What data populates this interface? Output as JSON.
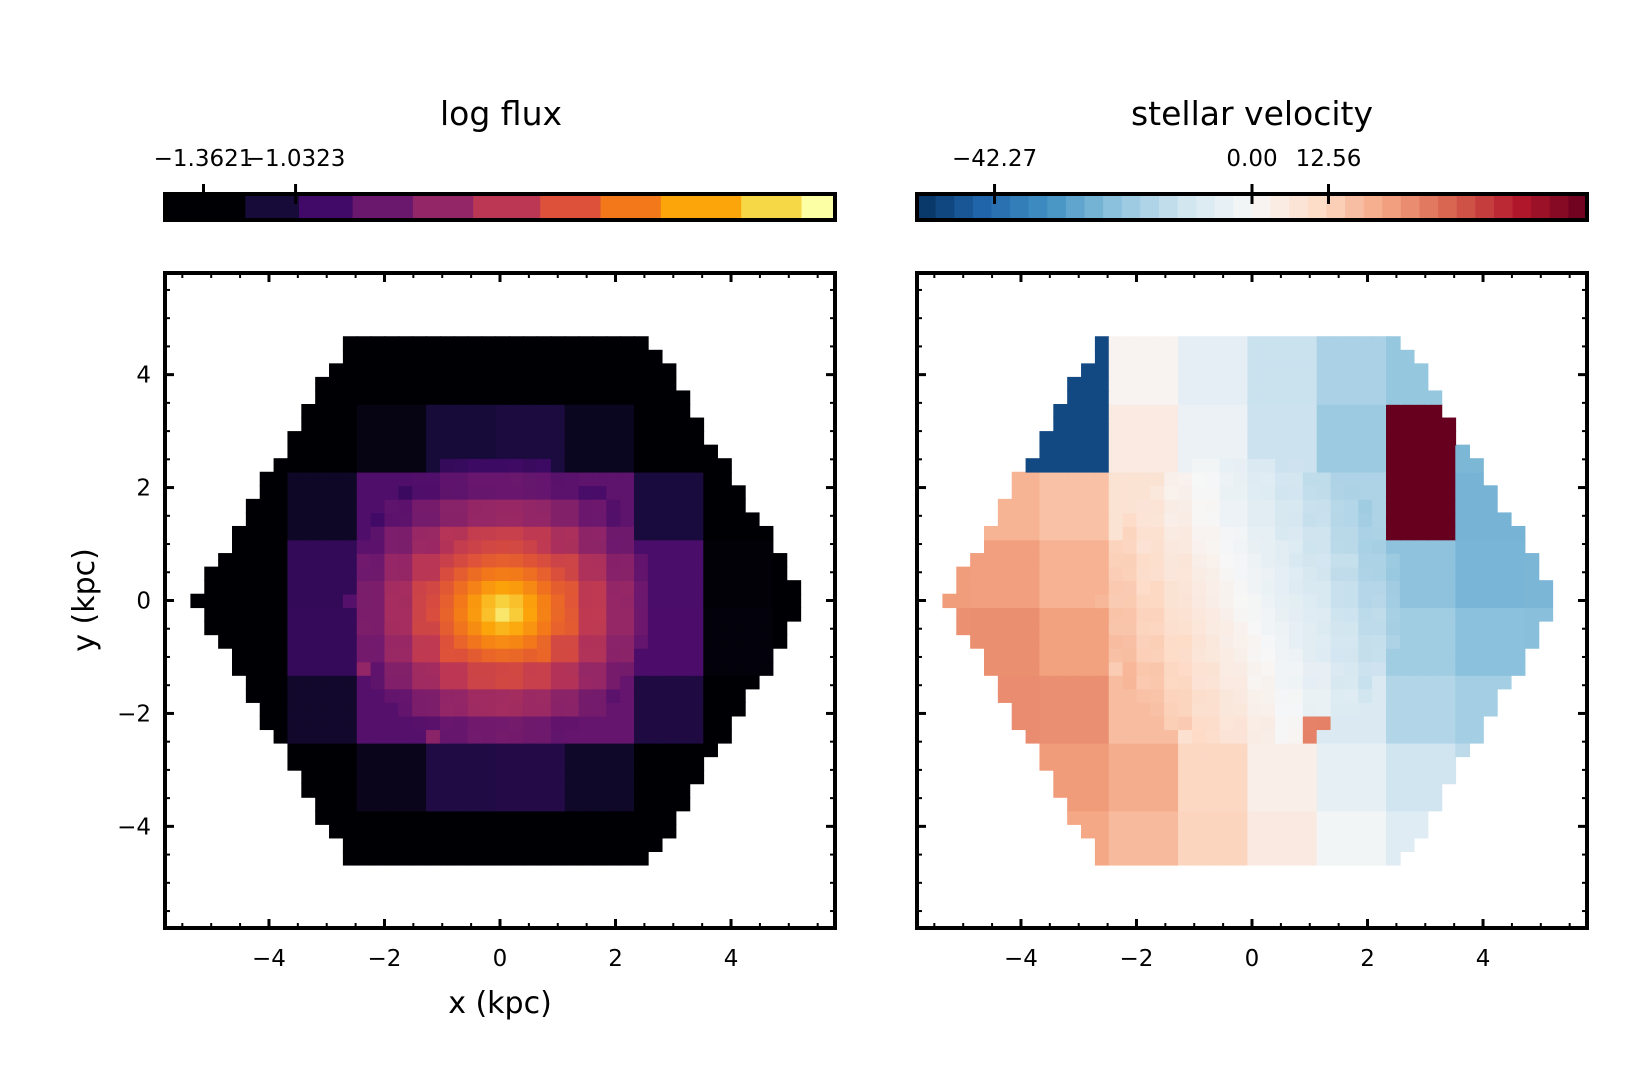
{
  "chart_data": [
    {
      "type": "heatmap",
      "colorbar": {
        "title": "log flux",
        "colormap": "inferno",
        "orientation": "horizontal",
        "placement": "top",
        "tick_labels": [
          "−1.3621",
          "−1.0323"
        ],
        "tick_values": [
          -1.3621,
          -1.0323
        ],
        "range": [
          -1.5,
          0.9
        ]
      },
      "xlabel": "x (kpc)",
      "ylabel": "y (kpc)",
      "xlim": [
        -5.8,
        5.8
      ],
      "ylim": [
        -5.8,
        5.8
      ],
      "xticks": [
        -4,
        -2,
        0,
        2,
        4
      ],
      "xtick_labels": [
        "−4",
        "−2",
        "0",
        "2",
        "4"
      ],
      "yticks": [
        -4,
        -2,
        0,
        2,
        4
      ],
      "ytick_labels": [
        "−4",
        "−2",
        "0",
        "2",
        "4"
      ],
      "grid": false,
      "map": "Voronoi-binned flux map: bright compact core near (0.1, 0) kpc, value decreasing outward to about -1.5 at the edges, within a hexagonal field of radius about 5.3 kpc"
    },
    {
      "type": "heatmap",
      "colorbar": {
        "title": "stellar velocity",
        "colormap": "RdBu_r",
        "orientation": "horizontal",
        "placement": "top",
        "tick_labels": [
          "−42.27",
          "0.00",
          "12.56"
        ],
        "tick_values": [
          -42.27,
          0.0,
          12.56
        ],
        "range": [
          -55,
          55
        ]
      },
      "xlabel": "",
      "ylabel": "",
      "xlim": [
        -5.8,
        5.8
      ],
      "ylim": [
        -5.8,
        5.8
      ],
      "xticks": [
        -4,
        -2,
        0,
        2,
        4
      ],
      "xtick_labels": [
        "−4",
        "−2",
        "0",
        "2",
        "4"
      ],
      "yticks": [
        -4,
        -2,
        0,
        2,
        4
      ],
      "ytick_labels": [
        "",
        "",
        "",
        "",
        ""
      ],
      "grid": false,
      "map": "Voronoi-binned stellar velocity: strongly negative (blue) on the east and north-west outer bins, mildly positive (red) on the west side, one strongly positive bin near (3.2, 2.3) kpc"
    }
  ]
}
